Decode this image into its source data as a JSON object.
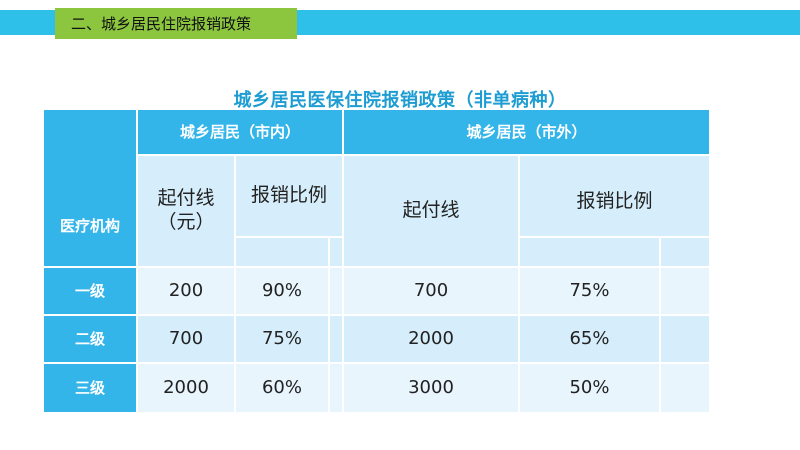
{
  "header": {
    "section_title": "二、城乡居民住院报销政策"
  },
  "table": {
    "title": "城乡居民医保住院报销政策（非单病种）",
    "row_header_label": "医疗机构",
    "group_in_city": "城乡居民（市内）",
    "group_out_city": "城乡居民（市外）",
    "in_city_threshold_label": "起付线\n（元）",
    "in_city_ratio_label": "报销比例",
    "out_city_threshold_label": "起付线",
    "out_city_ratio_label": "报销比例",
    "rows": [
      {
        "level": "一级",
        "in_threshold": "200",
        "in_ratio": "90%",
        "out_threshold": "700",
        "out_ratio": "75%"
      },
      {
        "level": "二级",
        "in_threshold": "700",
        "in_ratio": "75%",
        "out_threshold": "2000",
        "out_ratio": "65%"
      },
      {
        "level": "三级",
        "in_threshold": "2000",
        "in_ratio": "60%",
        "out_threshold": "3000",
        "out_ratio": "50%"
      }
    ]
  },
  "colors": {
    "header_bar": "#2ec0e8",
    "header_box": "#8cc63f",
    "title_text": "#1e9dd3",
    "table_dark": "#34b5ea",
    "table_light": "#d6eefb",
    "table_lighter": "#e8f5fd"
  }
}
